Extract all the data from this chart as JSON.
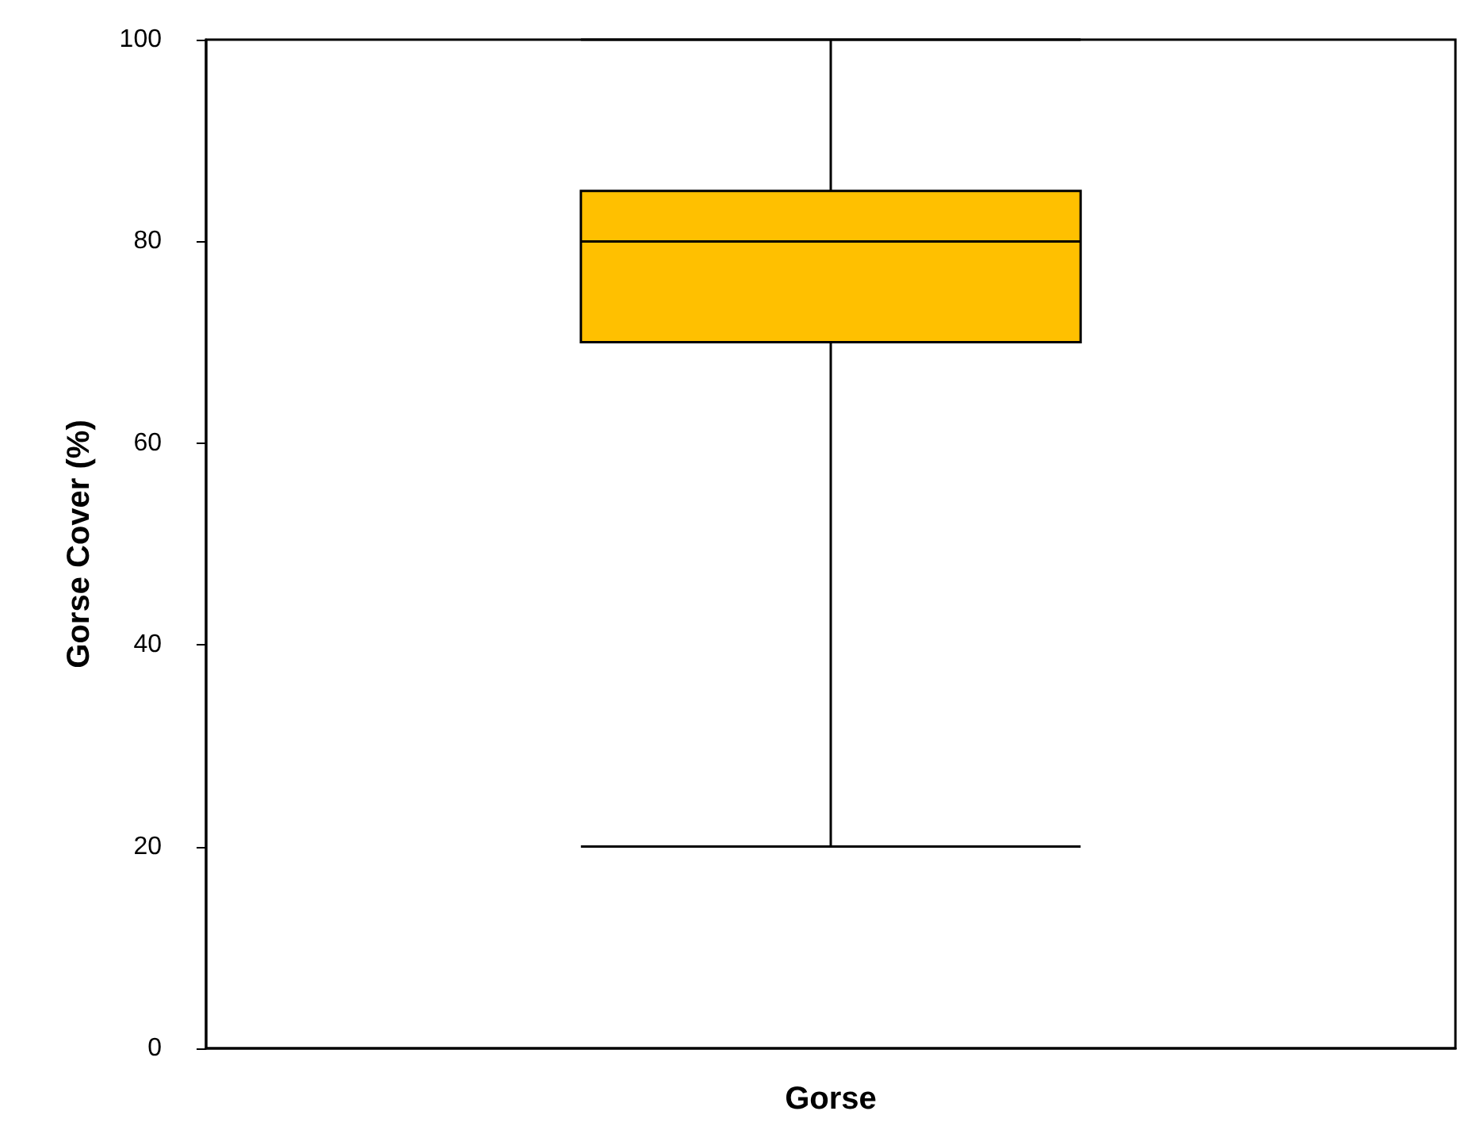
{
  "chart_data": {
    "type": "box",
    "categories": [
      "Gorse"
    ],
    "ylabel": "Gorse Cover (%)",
    "ylim": [
      0,
      100
    ],
    "yticks": [
      0,
      20,
      40,
      60,
      80,
      100
    ],
    "grid": false,
    "series": [
      {
        "color": "#ffc000",
        "boxes": [
          {
            "low": 20,
            "q1": 70,
            "median": 80,
            "q3": 85,
            "high": 100
          }
        ]
      }
    ]
  }
}
